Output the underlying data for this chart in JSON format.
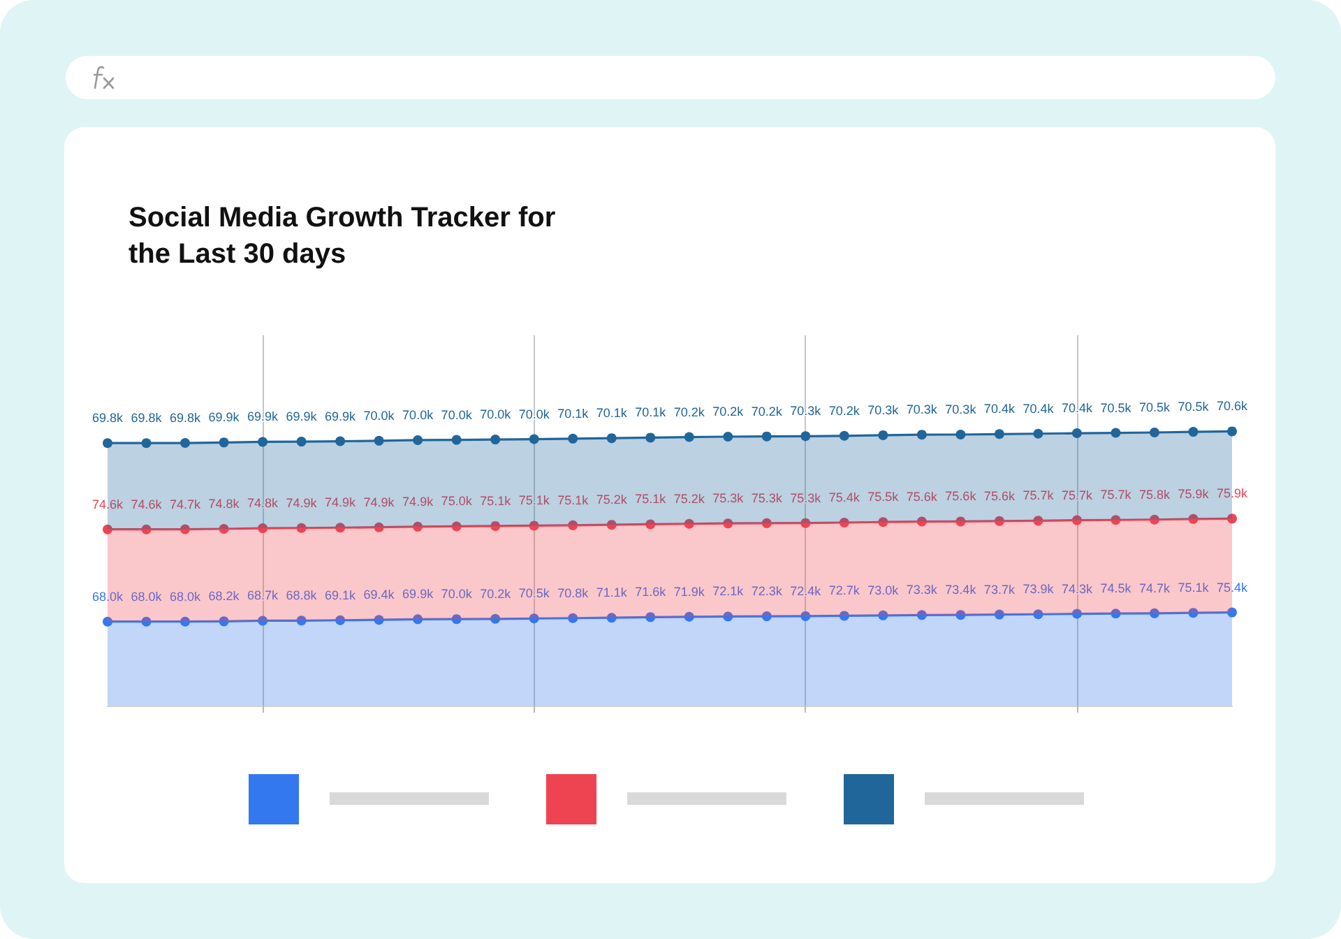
{
  "chart_data": {
    "type": "area",
    "title": "Social Media Growth Tracker for the Last 30 days",
    "categories": [
      null,
      null,
      null,
      null,
      null,
      null,
      null,
      null,
      null,
      null,
      null,
      null,
      null,
      null,
      null,
      null,
      null,
      null,
      null,
      null,
      null,
      null,
      null,
      null,
      null,
      null,
      null,
      null,
      null,
      null
    ],
    "stacked": true,
    "grid": "x",
    "marker": "circle",
    "series": [
      {
        "color": "#3478f0",
        "values": [
          68000,
          68000,
          68000,
          68200,
          68700,
          68800,
          69100,
          69400,
          69900,
          70000,
          70200,
          70500,
          70800,
          71100,
          71600,
          71900,
          72100,
          72300,
          72400,
          72700,
          73000,
          73300,
          73400,
          73700,
          73900,
          74300,
          74500,
          74700,
          75100,
          75400
        ],
        "value_labels": [
          "68.0k",
          "68.0k",
          "68.0k",
          "68.2k",
          "68.7k",
          "68.8k",
          "69.1k",
          "69.4k",
          "69.9k",
          "70.0k",
          "70.2k",
          "70.5k",
          "70.8k",
          "71.1k",
          "71.6k",
          "71.9k",
          "72.1k",
          "72.3k",
          "72.4k",
          "72.7k",
          "73.0k",
          "73.3k",
          "73.4k",
          "73.7k",
          "73.9k",
          "74.3k",
          "74.5k",
          "74.7k",
          "75.1k",
          "75.4k"
        ]
      },
      {
        "color": "#ee4452",
        "values": [
          74600,
          74600,
          74700,
          74800,
          74800,
          74900,
          74900,
          74900,
          74900,
          75000,
          75100,
          75100,
          75100,
          75200,
          75100,
          75200,
          75300,
          75300,
          75300,
          75400,
          75500,
          75600,
          75600,
          75600,
          75700,
          75700,
          75700,
          75800,
          75900,
          75900
        ],
        "value_labels": [
          "74.6k",
          "74.6k",
          "74.7k",
          "74.8k",
          "74.8k",
          "74.9k",
          "74.9k",
          "74.9k",
          "74.9k",
          "75.0k",
          "75.1k",
          "75.1k",
          "75.1k",
          "75.2k",
          "75.1k",
          "75.2k",
          "75.3k",
          "75.3k",
          "75.3k",
          "75.4k",
          "75.5k",
          "75.6k",
          "75.6k",
          "75.6k",
          "75.7k",
          "75.7k",
          "75.7k",
          "75.8k",
          "75.9k",
          "75.9k"
        ]
      },
      {
        "color": "#21669a",
        "values": [
          69800,
          69800,
          69800,
          69900,
          69900,
          69900,
          69900,
          70000,
          70000,
          70000,
          70000,
          70000,
          70100,
          70100,
          70100,
          70200,
          70200,
          70200,
          70300,
          70200,
          70300,
          70300,
          70300,
          70400,
          70400,
          70400,
          70500,
          70500,
          70500,
          70600
        ],
        "value_labels": [
          "69.8k",
          "69.8k",
          "69.8k",
          "69.9k",
          "69.9k",
          "69.9k",
          "69.9k",
          "70.0k",
          "70.0k",
          "70.0k",
          "70.0k",
          "70.0k",
          "70.1k",
          "70.1k",
          "70.1k",
          "70.2k",
          "70.2k",
          "70.2k",
          "70.3k",
          "70.2k",
          "70.3k",
          "70.3k",
          "70.3k",
          "70.4k",
          "70.4k",
          "70.4k",
          "70.5k",
          "70.5k",
          "70.5k",
          "70.6k"
        ]
      }
    ]
  }
}
